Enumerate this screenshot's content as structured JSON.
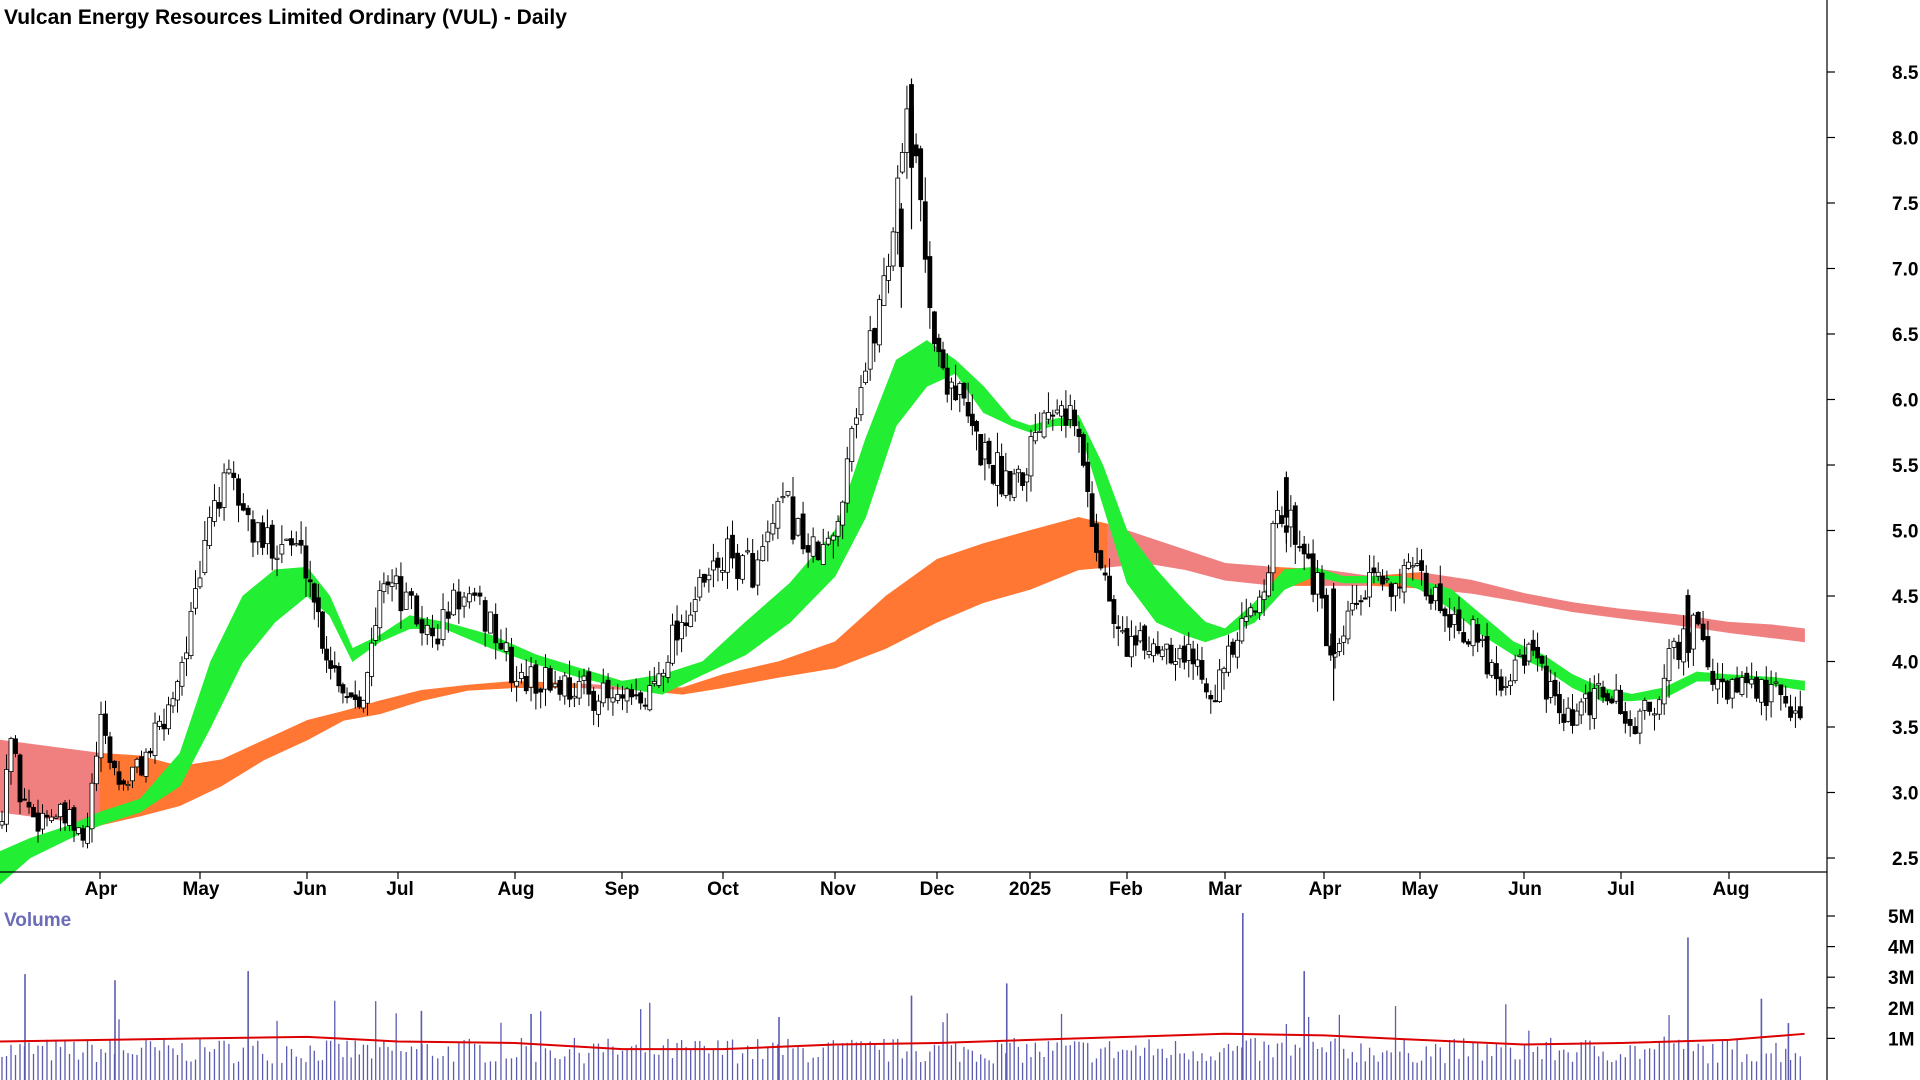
{
  "chart_data": [
    {
      "type": "candlestick",
      "title": "Vulcan Energy Resources Limited Ordinary (VUL) - Daily",
      "ylim": [
        2.0,
        8.7
      ],
      "yticks": [
        2.5,
        3.0,
        3.5,
        4.0,
        4.5,
        5.0,
        5.5,
        6.0,
        6.5,
        7.0,
        7.5,
        8.0,
        8.5
      ],
      "ytick_labels": [
        "2.5",
        "3.0",
        "3.5",
        "4.0",
        "4.5",
        "5.0",
        "5.5",
        "6.0",
        "6.5",
        "7.0",
        "7.5",
        "8.0",
        "8.5"
      ],
      "xticks": [
        {
          "label": "Apr",
          "m": 1
        },
        {
          "label": "May",
          "m": 2
        },
        {
          "label": "Jun",
          "m": 3
        },
        {
          "label": "Jul",
          "m": 4
        },
        {
          "label": "Aug",
          "m": 5
        },
        {
          "label": "Sep",
          "m": 6
        },
        {
          "label": "Oct",
          "m": 7
        },
        {
          "label": "Nov",
          "m": 8
        },
        {
          "label": "Dec",
          "m": 9
        },
        {
          "label": "2025",
          "m": 10
        },
        {
          "label": "Feb",
          "m": 11
        },
        {
          "label": "Mar",
          "m": 12
        },
        {
          "label": "Apr",
          "m": 13
        },
        {
          "label": "May",
          "m": 14
        },
        {
          "label": "Jun",
          "m": 15
        },
        {
          "label": "Jul",
          "m": 16
        },
        {
          "label": "Aug",
          "m": 17
        }
      ],
      "price_path": [
        [
          0.0,
          2.75
        ],
        [
          0.1,
          3.45
        ],
        [
          0.2,
          3.0
        ],
        [
          0.35,
          2.8
        ],
        [
          0.5,
          2.85
        ],
        [
          0.72,
          2.75
        ],
        [
          0.85,
          2.58
        ],
        [
          1.0,
          3.5
        ],
        [
          1.2,
          3.05
        ],
        [
          1.4,
          3.2
        ],
        [
          1.65,
          3.55
        ],
        [
          1.85,
          4.1
        ],
        [
          2.0,
          4.6
        ],
        [
          2.1,
          5.2
        ],
        [
          2.3,
          5.35
        ],
        [
          2.55,
          4.9
        ],
        [
          2.8,
          4.95
        ],
        [
          3.0,
          4.75
        ],
        [
          3.2,
          4.1
        ],
        [
          3.45,
          3.75
        ],
        [
          3.65,
          3.8
        ],
        [
          3.85,
          4.7
        ],
        [
          4.1,
          4.4
        ],
        [
          4.3,
          4.15
        ],
        [
          4.5,
          4.5
        ],
        [
          4.8,
          4.3
        ],
        [
          5.0,
          3.85
        ],
        [
          5.3,
          3.85
        ],
        [
          5.6,
          3.8
        ],
        [
          5.9,
          3.7
        ],
        [
          6.2,
          3.65
        ],
        [
          6.35,
          3.9
        ],
        [
          6.5,
          4.2
        ],
        [
          6.75,
          4.5
        ],
        [
          7.0,
          4.8
        ],
        [
          7.3,
          4.7
        ],
        [
          7.55,
          5.2
        ],
        [
          7.8,
          4.8
        ],
        [
          8.0,
          4.9
        ],
        [
          8.15,
          5.8
        ],
        [
          8.35,
          6.4
        ],
        [
          8.55,
          7.2
        ],
        [
          8.7,
          8.3
        ],
        [
          8.85,
          7.4
        ],
        [
          9.0,
          6.3
        ],
        [
          9.2,
          6.1
        ],
        [
          9.4,
          5.7
        ],
        [
          9.7,
          5.4
        ],
        [
          9.95,
          5.5
        ],
        [
          10.1,
          5.9
        ],
        [
          10.3,
          6.1
        ],
        [
          10.5,
          5.7
        ],
        [
          10.7,
          4.85
        ],
        [
          10.9,
          4.2
        ],
        [
          11.15,
          4.1
        ],
        [
          11.4,
          4.15
        ],
        [
          11.7,
          4.0
        ],
        [
          11.9,
          3.8
        ],
        [
          12.1,
          4.1
        ],
        [
          12.3,
          4.4
        ],
        [
          12.55,
          5.1
        ],
        [
          12.75,
          5.0
        ],
        [
          12.95,
          4.5
        ],
        [
          13.1,
          3.9
        ],
        [
          13.3,
          4.4
        ],
        [
          13.55,
          4.6
        ],
        [
          13.8,
          4.65
        ],
        [
          14.0,
          4.6
        ],
        [
          14.2,
          4.45
        ],
        [
          14.5,
          4.2
        ],
        [
          14.8,
          3.85
        ],
        [
          15.0,
          4.1
        ],
        [
          15.2,
          3.9
        ],
        [
          15.4,
          3.5
        ],
        [
          15.6,
          3.6
        ],
        [
          15.85,
          3.8
        ],
        [
          16.1,
          3.5
        ],
        [
          16.3,
          3.65
        ],
        [
          16.5,
          4.1
        ],
        [
          16.7,
          4.25
        ],
        [
          16.9,
          3.75
        ],
        [
          17.2,
          3.8
        ],
        [
          17.5,
          3.7
        ],
        [
          17.7,
          3.6
        ]
      ],
      "spikes": [
        [
          8.75,
          8.45,
          7.3
        ],
        [
          8.65,
          7.5,
          6.7
        ],
        [
          12.62,
          5.45,
          4.9
        ],
        [
          13.1,
          4.6,
          3.7
        ],
        [
          16.62,
          4.55,
          4.0
        ]
      ],
      "series": [
        {
          "kind": "fast_ribbon",
          "colors": {
            "up": "#22ee33",
            "down": "#ff7733",
            "weak_down": "#ffb0b0"
          },
          "points": [
            [
              0.0,
              2.3,
              2.55
            ],
            [
              0.3,
              2.5,
              2.65
            ],
            [
              0.7,
              2.65,
              2.75
            ],
            [
              1.0,
              2.75,
              2.85
            ],
            [
              1.4,
              2.85,
              2.95
            ],
            [
              1.8,
              3.05,
              3.3
            ],
            [
              2.1,
              3.5,
              4.0
            ],
            [
              2.4,
              4.0,
              4.5
            ],
            [
              2.7,
              4.3,
              4.7
            ],
            [
              3.0,
              4.5,
              4.72
            ],
            [
              3.25,
              4.35,
              4.5
            ],
            [
              3.5,
              4.0,
              4.1
            ],
            [
              3.8,
              4.15,
              4.2
            ],
            [
              4.1,
              4.25,
              4.35
            ],
            [
              4.4,
              4.25,
              4.3
            ],
            [
              4.8,
              4.1,
              4.2
            ],
            [
              5.2,
              3.98,
              4.05
            ],
            [
              5.6,
              3.88,
              3.95
            ],
            [
              6.0,
              3.8,
              3.85
            ],
            [
              6.4,
              3.75,
              3.9
            ],
            [
              6.8,
              3.9,
              4.0
            ],
            [
              7.2,
              4.05,
              4.3
            ],
            [
              7.6,
              4.3,
              4.6
            ],
            [
              8.0,
              4.65,
              5.0
            ],
            [
              8.3,
              5.1,
              5.7
            ],
            [
              8.6,
              5.8,
              6.3
            ],
            [
              8.9,
              6.1,
              6.45
            ],
            [
              9.2,
              6.2,
              6.3
            ],
            [
              9.5,
              5.9,
              6.1
            ],
            [
              9.8,
              5.8,
              5.85
            ],
            [
              10.0,
              5.75,
              5.8
            ],
            [
              10.25,
              5.8,
              5.85
            ],
            [
              10.5,
              5.8,
              5.88
            ],
            [
              10.75,
              5.2,
              5.5
            ],
            [
              11.0,
              4.6,
              5.0
            ],
            [
              11.3,
              4.3,
              4.7
            ],
            [
              11.6,
              4.2,
              4.45
            ],
            [
              11.8,
              4.15,
              4.3
            ],
            [
              12.0,
              4.2,
              4.25
            ],
            [
              12.3,
              4.3,
              4.45
            ],
            [
              12.6,
              4.55,
              4.7
            ],
            [
              12.9,
              4.65,
              4.72
            ],
            [
              13.2,
              4.6,
              4.65
            ],
            [
              13.5,
              4.6,
              4.65
            ],
            [
              13.8,
              4.6,
              4.65
            ],
            [
              14.0,
              4.55,
              4.62
            ],
            [
              14.3,
              4.4,
              4.55
            ],
            [
              14.6,
              4.2,
              4.35
            ],
            [
              14.9,
              4.05,
              4.15
            ],
            [
              15.2,
              3.95,
              4.05
            ],
            [
              15.5,
              3.8,
              3.9
            ],
            [
              15.8,
              3.7,
              3.8
            ],
            [
              16.1,
              3.7,
              3.75
            ],
            [
              16.4,
              3.72,
              3.8
            ],
            [
              16.7,
              3.85,
              3.92
            ],
            [
              17.0,
              3.85,
              3.9
            ],
            [
              17.4,
              3.82,
              3.88
            ],
            [
              17.7,
              3.78,
              3.85
            ]
          ]
        },
        {
          "kind": "slow_ribbon",
          "colors": {
            "up": "#3cb878",
            "down": "#ff7733",
            "weak_down": "#f08080"
          },
          "points": [
            [
              0.0,
              3.4,
              2.85
            ],
            [
              0.5,
              3.35,
              2.8
            ],
            [
              1.0,
              3.3,
              2.75
            ],
            [
              1.4,
              3.28,
              2.82
            ],
            [
              1.8,
              3.2,
              2.9
            ],
            [
              2.2,
              3.25,
              3.05
            ],
            [
              2.6,
              3.4,
              3.25
            ],
            [
              3.0,
              3.55,
              3.4
            ],
            [
              3.4,
              3.62,
              3.55
            ],
            [
              3.8,
              3.7,
              3.6
            ],
            [
              4.2,
              3.78,
              3.7
            ],
            [
              4.6,
              3.82,
              3.78
            ],
            [
              5.0,
              3.85,
              3.8
            ],
            [
              5.6,
              3.83,
              3.8
            ],
            [
              6.2,
              3.8,
              3.78
            ],
            [
              6.6,
              3.8,
              3.75
            ],
            [
              7.0,
              3.9,
              3.8
            ],
            [
              7.5,
              4.0,
              3.88
            ],
            [
              8.0,
              4.15,
              3.95
            ],
            [
              8.5,
              4.5,
              4.1
            ],
            [
              9.0,
              4.78,
              4.3
            ],
            [
              9.5,
              4.9,
              4.45
            ],
            [
              10.0,
              5.0,
              4.55
            ],
            [
              10.5,
              5.1,
              4.7
            ],
            [
              10.8,
              5.05,
              4.72
            ],
            [
              11.2,
              4.95,
              4.75
            ],
            [
              11.6,
              4.85,
              4.7
            ],
            [
              12.0,
              4.75,
              4.62
            ],
            [
              12.5,
              4.72,
              4.58
            ],
            [
              13.0,
              4.7,
              4.58
            ],
            [
              13.5,
              4.65,
              4.58
            ],
            [
              14.0,
              4.68,
              4.56
            ],
            [
              14.5,
              4.62,
              4.52
            ],
            [
              15.0,
              4.52,
              4.45
            ],
            [
              15.5,
              4.45,
              4.38
            ],
            [
              16.0,
              4.4,
              4.33
            ],
            [
              16.5,
              4.36,
              4.28
            ],
            [
              17.0,
              4.3,
              4.22
            ],
            [
              17.4,
              4.28,
              4.18
            ],
            [
              17.7,
              4.25,
              4.15
            ]
          ]
        }
      ]
    },
    {
      "type": "bar",
      "title": "Volume",
      "yticks": [
        1000000,
        2000000,
        3000000,
        4000000,
        5000000
      ],
      "ytick_labels": [
        "1M",
        "2M",
        "3M",
        "4M",
        "5M"
      ],
      "ylim": [
        0,
        5600000
      ],
      "typical_volume": 600000,
      "spikes": [
        [
          0.25,
          3100000
        ],
        [
          1.15,
          2900000
        ],
        [
          2.45,
          3200000
        ],
        [
          4.2,
          1900000
        ],
        [
          5.15,
          1800000
        ],
        [
          7.5,
          1700000
        ],
        [
          8.75,
          2400000
        ],
        [
          9.75,
          2800000
        ],
        [
          12.18,
          5100000
        ],
        [
          12.8,
          3200000
        ],
        [
          16.62,
          4300000
        ],
        [
          17.3,
          2300000
        ],
        [
          17.55,
          1500000
        ]
      ],
      "avg_line": [
        [
          0.0,
          900000
        ],
        [
          2.0,
          1000000
        ],
        [
          3.0,
          1050000
        ],
        [
          4.0,
          900000
        ],
        [
          5.0,
          850000
        ],
        [
          6.0,
          650000
        ],
        [
          7.0,
          650000
        ],
        [
          8.0,
          800000
        ],
        [
          9.0,
          850000
        ],
        [
          10.0,
          950000
        ],
        [
          11.0,
          1050000
        ],
        [
          12.0,
          1150000
        ],
        [
          13.0,
          1100000
        ],
        [
          14.0,
          950000
        ],
        [
          15.0,
          800000
        ],
        [
          16.0,
          850000
        ],
        [
          17.0,
          950000
        ],
        [
          17.7,
          1150000
        ]
      ],
      "colors": {
        "bar": "#5b5bb0",
        "avg": "#dd0000"
      }
    }
  ]
}
